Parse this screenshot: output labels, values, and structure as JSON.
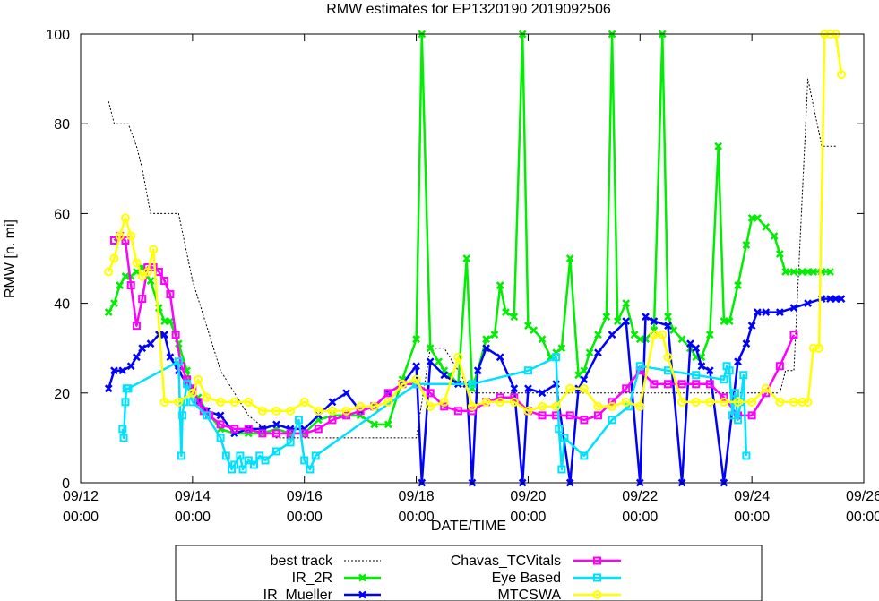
{
  "chart_data": {
    "type": "line",
    "title": "RMW estimates for EP1320190 2019092506",
    "xlabel": "DATE/TIME",
    "ylabel": "RMW [n. mi]",
    "xlim": [
      0,
      14
    ],
    "ylim": [
      0,
      100
    ],
    "x_unit": "days since 09/12 00:00",
    "x_ticks": [
      {
        "x": 0,
        "line1": "09/12",
        "line2": "00:00"
      },
      {
        "x": 2,
        "line1": "09/14",
        "line2": "00:00"
      },
      {
        "x": 4,
        "line1": "09/16",
        "line2": "00:00"
      },
      {
        "x": 6,
        "line1": "09/18",
        "line2": "00:00"
      },
      {
        "x": 8,
        "line1": "09/20",
        "line2": "00:00"
      },
      {
        "x": 10,
        "line1": "09/22",
        "line2": "00:00"
      },
      {
        "x": 12,
        "line1": "09/24",
        "line2": "00:00"
      },
      {
        "x": 14,
        "line1": "09/26",
        "line2": "00:00"
      }
    ],
    "y_ticks": [
      {
        "y": 0,
        "label": "0"
      },
      {
        "y": 20,
        "label": "20"
      },
      {
        "y": 40,
        "label": "40"
      },
      {
        "y": 60,
        "label": "60"
      },
      {
        "y": 80,
        "label": "80"
      },
      {
        "y": 100,
        "label": "100"
      }
    ],
    "series": [
      {
        "name": "best track",
        "color": "#000000",
        "style": "dotted",
        "marker": "none",
        "x": [
          0.5,
          0.6,
          0.7,
          0.85,
          1.0,
          1.1,
          1.25,
          1.5,
          1.75,
          2.0,
          2.25,
          2.5,
          2.75,
          3.0,
          3.5,
          4.0,
          4.25,
          4.5,
          5.0,
          5.5,
          5.75,
          6.0,
          6.25,
          6.5,
          7.0,
          8.0,
          9.0,
          10.0,
          11.0,
          12.0,
          12.25,
          12.5,
          12.6,
          12.75,
          13.0,
          13.25,
          13.5
        ],
        "y": [
          85,
          80,
          80,
          80,
          75,
          70,
          60,
          60,
          60,
          45,
          35,
          25,
          20,
          15,
          10,
          10,
          10,
          10,
          10,
          10,
          10,
          10,
          30,
          30,
          20,
          20,
          20,
          20,
          20,
          20,
          20,
          20,
          25,
          25,
          90,
          75,
          75
        ]
      },
      {
        "name": "IR_2R",
        "color": "#00ee00",
        "style": "solid",
        "marker": "x",
        "x": [
          0.5,
          0.6,
          0.7,
          0.8,
          0.9,
          1.0,
          1.1,
          1.25,
          1.4,
          1.5,
          1.6,
          1.75,
          1.9,
          2.0,
          2.1,
          2.25,
          2.5,
          2.75,
          3.0,
          3.25,
          3.5,
          3.75,
          4.0,
          4.25,
          4.5,
          4.75,
          5.0,
          5.25,
          5.5,
          5.75,
          6.0,
          6.1,
          6.25,
          6.4,
          6.5,
          6.6,
          6.75,
          6.9,
          7.0,
          7.1,
          7.25,
          7.4,
          7.5,
          7.6,
          7.75,
          7.9,
          8.0,
          8.1,
          8.25,
          8.4,
          8.5,
          8.6,
          8.75,
          8.9,
          9.0,
          9.1,
          9.25,
          9.4,
          9.5,
          9.6,
          9.75,
          9.9,
          10.0,
          10.1,
          10.25,
          10.4,
          10.5,
          10.6,
          10.75,
          10.9,
          11.0,
          11.1,
          11.25,
          11.4,
          11.5,
          11.6,
          11.75,
          11.9,
          12.0,
          12.1,
          12.25,
          12.4,
          12.5,
          12.6,
          12.75,
          12.9,
          13.0,
          13.1,
          13.25,
          13.4
        ],
        "y": [
          38,
          40,
          44,
          46,
          46,
          47,
          48,
          45,
          39,
          36,
          36,
          31,
          25,
          20,
          19,
          16,
          12,
          11,
          11,
          11,
          12,
          11,
          11,
          14,
          15,
          15,
          15,
          13,
          13,
          23,
          32,
          100,
          30,
          27,
          25,
          24,
          22,
          50,
          21,
          25,
          32,
          33,
          44,
          38,
          37,
          100,
          35,
          34,
          32,
          28,
          29,
          30,
          50,
          24,
          25,
          29,
          33,
          37,
          100,
          36,
          40,
          33,
          32,
          32,
          34,
          100,
          37,
          34,
          32,
          30,
          28,
          28,
          33,
          75,
          36,
          36,
          44,
          53,
          59,
          59,
          57,
          55,
          51,
          47,
          47,
          47,
          47,
          47,
          47,
          47
        ]
      },
      {
        "name": "IR_Mueller",
        "color": "#0000ff",
        "style": "solid",
        "marker": "x",
        "x": [
          0.5,
          0.6,
          0.75,
          0.9,
          1.0,
          1.1,
          1.25,
          1.4,
          1.5,
          1.6,
          1.75,
          1.9,
          2.0,
          2.1,
          2.25,
          2.5,
          2.75,
          3.0,
          3.25,
          3.5,
          3.75,
          4.0,
          4.25,
          4.5,
          4.75,
          5.0,
          5.25,
          5.5,
          5.75,
          6.0,
          6.1,
          6.25,
          6.5,
          6.75,
          6.9,
          7.0,
          7.1,
          7.25,
          7.5,
          7.75,
          7.9,
          8.0,
          8.25,
          8.5,
          8.75,
          8.9,
          9.0,
          9.25,
          9.5,
          9.75,
          10.0,
          10.1,
          10.25,
          10.5,
          10.75,
          10.9,
          11.0,
          11.1,
          11.25,
          11.5,
          11.75,
          11.9,
          12.0,
          12.1,
          12.25,
          12.5,
          12.75,
          13.0,
          13.25,
          13.4,
          13.5,
          13.6
        ],
        "y": [
          21,
          25,
          25,
          26,
          28,
          30,
          31,
          33,
          33,
          28,
          25,
          22,
          21,
          18,
          16,
          15,
          11,
          12,
          12,
          13,
          12,
          12,
          15,
          18,
          20,
          16,
          17,
          20,
          22,
          26,
          0,
          27,
          24,
          22,
          22,
          0,
          25,
          30,
          28,
          21,
          0,
          21,
          20,
          22,
          0,
          21,
          23,
          29,
          33,
          36,
          0,
          37,
          36,
          35,
          0,
          31,
          30,
          26,
          25,
          0,
          27,
          31,
          35,
          38,
          38,
          38,
          39,
          40,
          41,
          41,
          41,
          41
        ]
      },
      {
        "name": "Chavas_TCVitals",
        "color": "#ff00ff",
        "style": "solid",
        "marker": "square",
        "x": [
          0.6,
          0.7,
          0.8,
          0.9,
          1.0,
          1.1,
          1.2,
          1.3,
          1.4,
          1.5,
          1.6,
          1.7,
          1.8,
          1.9,
          2.0,
          2.1,
          2.2,
          2.3,
          2.5,
          2.75,
          3.0,
          3.25,
          3.5,
          3.75,
          4.0,
          4.25,
          4.5,
          4.75,
          5.0,
          5.25,
          5.5,
          5.75,
          6.0,
          6.25,
          6.5,
          6.75,
          7.0,
          7.25,
          7.5,
          7.75,
          8.0,
          8.25,
          8.5,
          8.75,
          9.0,
          9.25,
          9.5,
          9.75,
          10.0,
          10.25,
          10.5,
          10.75,
          11.0,
          11.25,
          11.5,
          11.75,
          12.0,
          12.25,
          12.5,
          12.75
        ],
        "y": [
          54,
          55,
          54,
          44,
          35,
          41,
          48,
          48,
          47,
          45,
          42,
          33,
          26,
          23,
          21,
          18,
          16,
          15,
          13,
          12,
          12,
          11,
          11,
          11,
          11,
          12,
          14,
          15,
          16,
          17,
          20,
          22,
          22,
          20,
          17,
          16,
          16,
          18,
          19,
          19,
          16,
          15,
          15,
          15,
          14,
          15,
          18,
          21,
          25,
          22,
          22,
          22,
          22,
          22,
          19,
          15,
          15,
          20,
          26,
          33
        ]
      },
      {
        "name": "Eye Based",
        "color": "#00e0ff",
        "style": "solid",
        "marker": "square",
        "x": [
          0.75,
          0.77,
          0.8,
          0.82,
          0.85,
          1.75,
          1.8,
          1.82,
          1.85,
          1.9,
          2.0,
          2.25,
          2.5,
          2.6,
          2.7,
          2.75,
          2.85,
          2.9,
          3.0,
          3.1,
          3.2,
          3.3,
          3.5,
          3.75,
          3.9,
          4.0,
          4.1,
          4.2,
          6.0,
          7.0,
          8.0,
          8.5,
          8.55,
          8.6,
          8.65,
          9.0,
          9.5,
          9.8,
          10.0,
          10.5,
          11.0,
          11.5,
          11.55,
          11.6,
          11.65,
          11.7,
          11.75,
          11.8,
          11.85,
          11.9
        ],
        "y": [
          12,
          10,
          18,
          21,
          21,
          27,
          6,
          15,
          18,
          22,
          18,
          15,
          10,
          6,
          3,
          4,
          6,
          3,
          5,
          4,
          6,
          5,
          7,
          9,
          14,
          5,
          3,
          6,
          22,
          22,
          25,
          28,
          12,
          3,
          10,
          6,
          14,
          17,
          26,
          25,
          24,
          23,
          26,
          25,
          15,
          20,
          14,
          18,
          24,
          6
        ]
      },
      {
        "name": "MTCSWA",
        "color": "#ffff00",
        "style": "solid",
        "marker": "circle",
        "x": [
          0.5,
          0.6,
          0.7,
          0.8,
          0.9,
          1.0,
          1.1,
          1.2,
          1.3,
          1.5,
          1.75,
          2.0,
          2.1,
          2.25,
          2.5,
          2.75,
          3.0,
          3.25,
          3.5,
          3.75,
          4.0,
          4.25,
          4.5,
          4.75,
          5.0,
          5.25,
          5.5,
          5.75,
          6.0,
          6.25,
          6.5,
          6.75,
          7.0,
          7.25,
          7.5,
          7.75,
          8.0,
          8.25,
          8.5,
          8.75,
          9.0,
          9.25,
          9.5,
          9.75,
          10.0,
          10.25,
          10.4,
          10.5,
          10.75,
          11.0,
          11.25,
          11.5,
          11.75,
          12.0,
          12.25,
          12.5,
          12.75,
          12.9,
          13.0,
          13.1,
          13.2,
          13.3,
          13.4,
          13.5,
          13.6
        ],
        "y": [
          47,
          50,
          55,
          59,
          55,
          49,
          46,
          47,
          52,
          18,
          18,
          20,
          23,
          19,
          18,
          18,
          18,
          16,
          16,
          16,
          18,
          16,
          16,
          16,
          17,
          17,
          18,
          22,
          23,
          17,
          18,
          28,
          17,
          18,
          18,
          18,
          16,
          17,
          17,
          21,
          21,
          17,
          17,
          18,
          17,
          33,
          33,
          28,
          18,
          18,
          18,
          18,
          18,
          18,
          21,
          18,
          18,
          18,
          18,
          30,
          30,
          100,
          100,
          100,
          91
        ]
      }
    ],
    "legend": {
      "position": "bottom",
      "left_column": [
        "best track",
        "IR_2R",
        "IR_Mueller"
      ],
      "right_column": [
        "Chavas_TCVitals",
        "Eye Based",
        "MTCSWA"
      ]
    }
  }
}
